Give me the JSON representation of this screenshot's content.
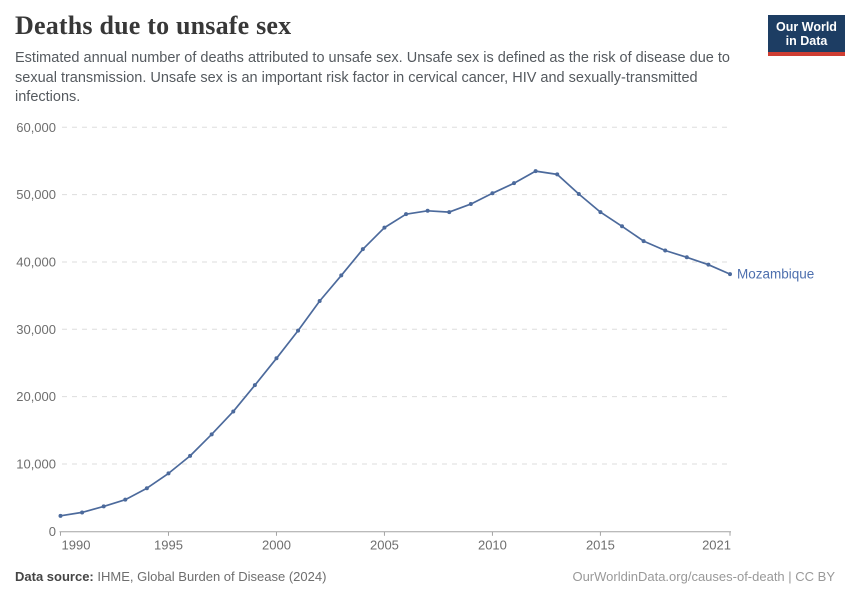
{
  "header": {
    "title": "Deaths due to unsafe sex",
    "subtitle": "Estimated annual number of deaths attributed to unsafe sex. Unsafe sex is defined as the risk of disease due to sexual transmission. Unsafe sex is an important risk factor in cervical cancer, HIV and sexually-transmitted infections."
  },
  "logo": {
    "line1": "Our World",
    "line2": "in Data",
    "bg_color": "#1d3d63",
    "stripe_color": "#cf3d32"
  },
  "chart_data": {
    "type": "line",
    "title": "Deaths due to unsafe sex",
    "xlabel": "",
    "ylabel": "",
    "x": [
      1990,
      1991,
      1992,
      1993,
      1994,
      1995,
      1996,
      1997,
      1998,
      1999,
      2000,
      2001,
      2002,
      2003,
      2004,
      2005,
      2006,
      2007,
      2008,
      2009,
      2010,
      2011,
      2012,
      2013,
      2014,
      2015,
      2016,
      2017,
      2018,
      2019,
      2020,
      2021
    ],
    "series": [
      {
        "name": "Mozambique",
        "color": "#4c6a9c",
        "values": [
          2300,
          2800,
          3700,
          4700,
          6400,
          8600,
          11200,
          14400,
          17800,
          21700,
          25700,
          29800,
          34200,
          38000,
          41900,
          45100,
          47100,
          47600,
          47400,
          48600,
          50200,
          51700,
          53500,
          53000,
          50100,
          47400,
          45300,
          43100,
          41700,
          40700,
          39600,
          38200
        ]
      }
    ],
    "series_label": "Mozambique",
    "series_label_color": "#4d6fae",
    "xlim": [
      1990,
      2021
    ],
    "ylim": [
      0,
      60000
    ],
    "xticks": [
      1990,
      1995,
      2000,
      2005,
      2010,
      2015,
      2021
    ],
    "yticks": [
      0,
      10000,
      20000,
      30000,
      40000,
      50000,
      60000
    ],
    "grid": "horizontal-dashed",
    "grid_color": "#dddddd",
    "axis_color": "#a3a3a3",
    "tick_label_color": "#6e6e6e",
    "legend_position": "end-of-line",
    "marker": "dot"
  },
  "footer": {
    "source_label": "Data source:",
    "source_text": " IHME, Global Burden of Disease (2024)",
    "right_text": "OurWorldinData.org/causes-of-death | CC BY"
  }
}
